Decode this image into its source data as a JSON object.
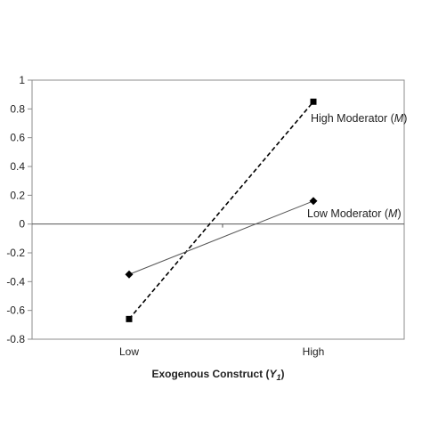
{
  "chart_data": {
    "type": "line",
    "categories": [
      "Low",
      "High"
    ],
    "xlabel": {
      "text": "Exogenous Construct (",
      "italic": "Y",
      "subscript": "1",
      "close": ")"
    },
    "ylabel": "",
    "ylim": [
      -0.8,
      1
    ],
    "yticks": [
      "1",
      "0.8",
      "0.6",
      "0.4",
      "0.2",
      "0",
      "-0.2",
      "-0.4",
      "-0.6",
      "-0.8"
    ],
    "ytick_values": [
      1,
      0.8,
      0.6,
      0.4,
      0.2,
      0,
      -0.2,
      -0.4,
      -0.6,
      -0.8
    ],
    "grid": false,
    "series": [
      {
        "name": "High Moderator",
        "label_text": "High Moderator (",
        "label_italic": "M",
        "label_close": ")",
        "values": [
          -0.66,
          0.85
        ],
        "line_style": "dashed",
        "marker": "square",
        "color": "#000000"
      },
      {
        "name": "Low Moderator",
        "label_text": "Low Moderator (",
        "label_italic": "M",
        "label_close": ")",
        "values": [
          -0.35,
          0.16
        ],
        "line_style": "solid",
        "marker": "diamond",
        "color": "#555555"
      }
    ]
  }
}
